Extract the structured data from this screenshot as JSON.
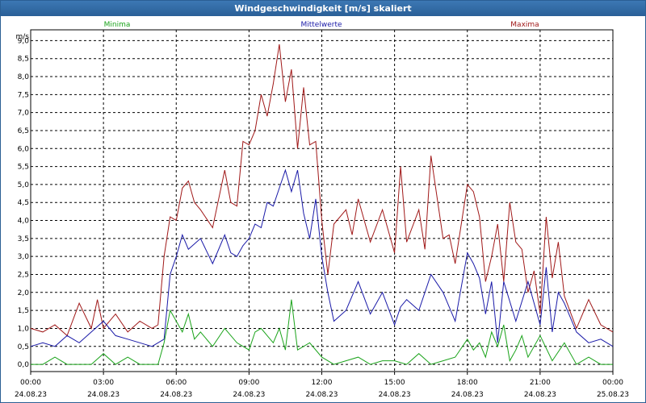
{
  "window": {
    "title": "Windgeschwindigkeit [m/s] skaliert"
  },
  "colors": {
    "minima": "#1aa31a",
    "mittelwerte": "#1a1aa8",
    "maxima": "#a01818",
    "grid": "#000000",
    "titlebar": "#2a5f97"
  },
  "chart_data": {
    "type": "line",
    "title": "Windgeschwindigkeit [m/s] skaliert",
    "ylabel": "m/s",
    "ylim": [
      -0.2,
      9.3
    ],
    "yticks": [
      "0,0",
      "0,5",
      "1,0",
      "1,5",
      "2,0",
      "2,5",
      "3,0",
      "3,5",
      "4,0",
      "4,5",
      "5,0",
      "5,5",
      "6,0",
      "6,5",
      "7,0",
      "7,5",
      "8,0",
      "8,5",
      "9,0"
    ],
    "xticks": [
      {
        "time": "00:00",
        "date": "24.08.23"
      },
      {
        "time": "03:00",
        "date": "24.08.23"
      },
      {
        "time": "06:00",
        "date": "24.08.23"
      },
      {
        "time": "09:00",
        "date": "24.08.23"
      },
      {
        "time": "12:00",
        "date": "24.08.23"
      },
      {
        "time": "15:00",
        "date": "24.08.23"
      },
      {
        "time": "18:00",
        "date": "24.08.23"
      },
      {
        "time": "21:00",
        "date": "24.08.23"
      },
      {
        "time": "00:00",
        "date": "25.08.23"
      }
    ],
    "xlim_hours": [
      0,
      24
    ],
    "grid": true,
    "legend": [
      "Minima",
      "Mittelwerte",
      "Maxima"
    ],
    "series": [
      {
        "name": "Maxima",
        "x": [
          0,
          0.5,
          1,
          1.5,
          2,
          2.5,
          2.75,
          3,
          3.5,
          4,
          4.5,
          5,
          5.25,
          5.5,
          5.75,
          6,
          6.25,
          6.5,
          6.75,
          7,
          7.5,
          7.75,
          8,
          8.25,
          8.5,
          8.75,
          9,
          9.25,
          9.5,
          9.75,
          10,
          10.25,
          10.5,
          10.75,
          11,
          11.25,
          11.5,
          11.75,
          12,
          12.25,
          12.5,
          13,
          13.25,
          13.5,
          14,
          14.5,
          15,
          15.25,
          15.5,
          16,
          16.25,
          16.5,
          17,
          17.25,
          17.5,
          18,
          18.25,
          18.5,
          18.75,
          19,
          19.25,
          19.5,
          19.75,
          20,
          20.25,
          20.5,
          20.75,
          21,
          21.25,
          21.5,
          21.75,
          22,
          22.5,
          23,
          23.5,
          24
        ],
        "values": [
          1.0,
          0.9,
          1.1,
          0.8,
          1.7,
          1.0,
          1.8,
          1.0,
          1.4,
          0.9,
          1.2,
          1.0,
          1.1,
          3.0,
          4.1,
          4.0,
          4.9,
          5.1,
          4.5,
          4.3,
          3.8,
          4.6,
          5.4,
          4.5,
          4.4,
          6.2,
          6.1,
          6.5,
          7.5,
          6.9,
          7.8,
          8.9,
          7.3,
          8.2,
          6.0,
          7.7,
          6.1,
          6.2,
          4.0,
          2.5,
          3.9,
          4.3,
          3.6,
          4.6,
          3.4,
          4.3,
          3.1,
          5.5,
          3.4,
          4.3,
          3.2,
          5.8,
          3.5,
          3.6,
          2.8,
          5.0,
          4.8,
          4.1,
          2.3,
          3.0,
          3.9,
          2.3,
          4.5,
          3.4,
          3.2,
          2.0,
          2.6,
          1.4,
          4.1,
          2.4,
          3.4,
          1.9,
          1.0,
          1.8,
          1.1,
          0.9
        ]
      },
      {
        "name": "Mittelwerte",
        "x": [
          0,
          0.5,
          1,
          1.5,
          2,
          2.5,
          3,
          3.5,
          4,
          4.5,
          5,
          5.5,
          5.75,
          6,
          6.25,
          6.5,
          7,
          7.5,
          8,
          8.25,
          8.5,
          8.75,
          9,
          9.25,
          9.5,
          9.75,
          10,
          10.25,
          10.5,
          10.75,
          11,
          11.25,
          11.5,
          11.75,
          12,
          12.25,
          12.5,
          13,
          13.5,
          14,
          14.5,
          15,
          15.25,
          15.5,
          16,
          16.5,
          17,
          17.5,
          18,
          18.25,
          18.5,
          18.75,
          19,
          19.25,
          19.5,
          20,
          20.5,
          21,
          21.25,
          21.5,
          21.75,
          22,
          22.5,
          23,
          23.5,
          24
        ],
        "values": [
          0.5,
          0.6,
          0.5,
          0.8,
          0.6,
          0.9,
          1.2,
          0.8,
          0.7,
          0.6,
          0.5,
          0.7,
          2.5,
          3.0,
          3.6,
          3.2,
          3.5,
          2.8,
          3.6,
          3.1,
          3.0,
          3.3,
          3.5,
          3.9,
          3.8,
          4.5,
          4.4,
          4.9,
          5.4,
          4.8,
          5.4,
          4.2,
          3.5,
          4.6,
          3.0,
          2.0,
          1.2,
          1.5,
          2.3,
          1.4,
          2.0,
          1.1,
          1.6,
          1.8,
          1.5,
          2.5,
          2.0,
          1.2,
          3.1,
          2.8,
          2.4,
          1.4,
          2.3,
          0.6,
          2.3,
          1.2,
          2.3,
          1.1,
          2.7,
          0.9,
          2.0,
          1.7,
          0.9,
          0.6,
          0.7,
          0.5
        ]
      },
      {
        "name": "Minima",
        "x": [
          0,
          0.5,
          1,
          1.5,
          2,
          2.5,
          3,
          3.5,
          4,
          4.5,
          5,
          5.25,
          5.5,
          5.75,
          6,
          6.25,
          6.5,
          6.75,
          7,
          7.5,
          8,
          8.5,
          9,
          9.25,
          9.5,
          9.75,
          10,
          10.25,
          10.5,
          10.75,
          11,
          11.5,
          12,
          12.5,
          13,
          13.5,
          14,
          14.5,
          15,
          15.5,
          16,
          16.5,
          17,
          17.5,
          18,
          18.25,
          18.5,
          18.75,
          19,
          19.25,
          19.5,
          19.75,
          20,
          20.25,
          20.5,
          21,
          21.5,
          22,
          22.5,
          23,
          23.5,
          24
        ],
        "values": [
          0.0,
          0.0,
          0.2,
          0.0,
          0.0,
          0.0,
          0.3,
          0.0,
          0.2,
          0.0,
          0.0,
          0.0,
          0.6,
          1.5,
          1.2,
          0.9,
          1.4,
          0.7,
          0.9,
          0.5,
          1.0,
          0.6,
          0.4,
          0.9,
          1.0,
          0.8,
          0.6,
          1.0,
          0.4,
          1.8,
          0.4,
          0.6,
          0.2,
          0.0,
          0.1,
          0.2,
          0.0,
          0.1,
          0.1,
          0.0,
          0.3,
          0.0,
          0.1,
          0.2,
          0.7,
          0.4,
          0.6,
          0.2,
          0.9,
          0.5,
          1.1,
          0.1,
          0.4,
          0.8,
          0.2,
          0.8,
          0.1,
          0.6,
          0.0,
          0.2,
          0.0,
          0.0
        ]
      }
    ]
  }
}
